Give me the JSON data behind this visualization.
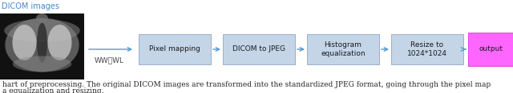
{
  "title_label": "DICOM images",
  "title_color": "#4488CC",
  "ww_wl_label": "WW、WL",
  "boxes": [
    {
      "label": "Pixel mapping",
      "color": "#C5D5E8",
      "edgecolor": "#9AAFC8"
    },
    {
      "label": "DICOM to JPEG",
      "color": "#C5D5E8",
      "edgecolor": "#9AAFC8"
    },
    {
      "label": "Histogram\nequalization",
      "color": "#C5D5E8",
      "edgecolor": "#9AAFC8"
    },
    {
      "label": "Resize to\n1024*1024",
      "color": "#C5D5E8",
      "edgecolor": "#9AAFC8"
    },
    {
      "label": "output",
      "color": "#FF66FF",
      "edgecolor": "#DD44DD"
    }
  ],
  "caption_line1": "hart of preprocessing. The original DICOM images are transformed into the standardized JPEG format, going through the pixel map",
  "caption_line2": "a equalization and resizing.",
  "arrow_color": "#5599CC",
  "bg_color": "#FFFFFF",
  "font_size_box": 6.5,
  "font_size_caption": 6.5,
  "font_size_title": 7.0,
  "font_size_wwwl": 6.5
}
